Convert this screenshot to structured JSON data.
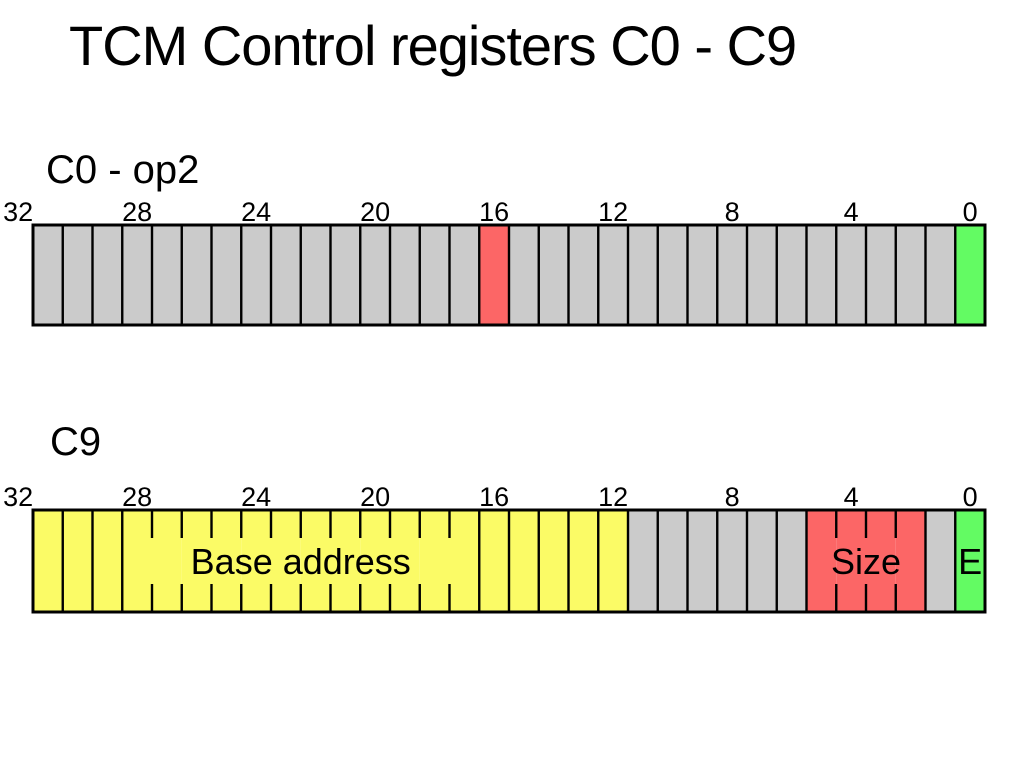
{
  "title": "TCM Control registers C0 - C9",
  "colors": {
    "background": "#FFFFFF",
    "text": "#000000",
    "outline": "#000000",
    "gray": "#CBCBCB",
    "red": "#FC6666",
    "green": "#63FB63",
    "yellow": "#FBFB66"
  },
  "registers": [
    {
      "id": "c0",
      "label": "C0 - op2",
      "bit_count": 32,
      "bit_labels": [
        32,
        28,
        24,
        20,
        16,
        12,
        8,
        4,
        0
      ],
      "cell_runs": [
        {
          "color": "gray",
          "count": 15,
          "bits": "31-17"
        },
        {
          "color": "red",
          "count": 1,
          "bits": "16"
        },
        {
          "color": "gray",
          "count": 15,
          "bits": "15-1"
        },
        {
          "color": "green",
          "count": 1,
          "bits": "0"
        }
      ],
      "tick_boundaries": [],
      "captions": []
    },
    {
      "id": "c9",
      "label": "C9",
      "bit_count": 32,
      "bit_labels": [
        32,
        28,
        24,
        20,
        16,
        12,
        8,
        4,
        0
      ],
      "cell_runs": [
        {
          "color": "yellow",
          "count": 20,
          "bits": "31-12"
        },
        {
          "color": "gray",
          "count": 6,
          "bits": "11-6"
        },
        {
          "color": "red",
          "count": 4,
          "bits": "5-2"
        },
        {
          "color": "gray",
          "count": 1,
          "bits": "1"
        },
        {
          "color": "green",
          "count": 1,
          "bits": "0"
        }
      ],
      "tick_boundaries": [
        4,
        5,
        6,
        7,
        8,
        9,
        10,
        11,
        12,
        13,
        14,
        27,
        28,
        29
      ],
      "captions": [
        {
          "text": "Base address",
          "from_boundary": 3,
          "to_boundary": 15
        },
        {
          "text": "Size",
          "from_boundary": 26,
          "to_boundary": 30
        },
        {
          "text": "E",
          "from_boundary": 31,
          "to_boundary": 32
        }
      ]
    }
  ]
}
